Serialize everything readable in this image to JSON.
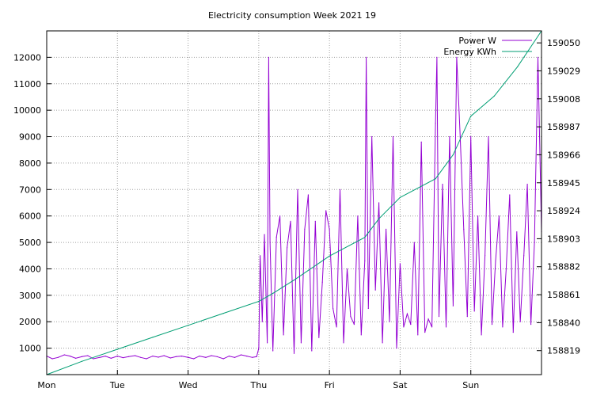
{
  "chart_data": {
    "type": "line",
    "title": "Electricity consumption Week 2021 19",
    "x_categories": [
      "Mon",
      "Tue",
      "Wed",
      "Thu",
      "Fri",
      "Sat",
      "Sun"
    ],
    "xlim": [
      0,
      7
    ],
    "y_left": {
      "lim": [
        0,
        13000
      ],
      "ticks": [
        1000,
        2000,
        3000,
        4000,
        5000,
        6000,
        7000,
        8000,
        9000,
        10000,
        11000,
        12000
      ]
    },
    "y_right": {
      "lim": [
        158801,
        159059
      ],
      "ticks": [
        158819,
        158840,
        158861,
        158882,
        158903,
        158924,
        158945,
        158966,
        158987,
        159008,
        159029,
        159050
      ]
    },
    "grid": true,
    "legend_position": "top-right",
    "series": [
      {
        "name": "Power W",
        "axis": "left",
        "color": "#9400d3",
        "x": [
          0.0,
          0.08,
          0.16,
          0.25,
          0.33,
          0.41,
          0.5,
          0.58,
          0.66,
          0.75,
          0.83,
          0.91,
          1.0,
          1.08,
          1.16,
          1.25,
          1.33,
          1.41,
          1.5,
          1.58,
          1.66,
          1.75,
          1.83,
          1.91,
          2.0,
          2.08,
          2.16,
          2.25,
          2.33,
          2.41,
          2.5,
          2.58,
          2.66,
          2.75,
          2.83,
          2.91,
          2.97,
          3.0,
          3.02,
          3.05,
          3.08,
          3.12,
          3.14,
          3.16,
          3.2,
          3.25,
          3.3,
          3.35,
          3.4,
          3.45,
          3.5,
          3.55,
          3.6,
          3.65,
          3.7,
          3.75,
          3.8,
          3.85,
          3.9,
          3.95,
          4.0,
          4.05,
          4.1,
          4.15,
          4.2,
          4.25,
          4.3,
          4.35,
          4.4,
          4.45,
          4.5,
          4.52,
          4.55,
          4.6,
          4.65,
          4.7,
          4.75,
          4.8,
          4.85,
          4.9,
          4.95,
          5.0,
          5.05,
          5.1,
          5.15,
          5.2,
          5.25,
          5.3,
          5.35,
          5.4,
          5.45,
          5.5,
          5.52,
          5.55,
          5.6,
          5.65,
          5.7,
          5.75,
          5.8,
          5.85,
          5.9,
          5.95,
          6.0,
          6.05,
          6.1,
          6.15,
          6.2,
          6.25,
          6.3,
          6.35,
          6.4,
          6.45,
          6.5,
          6.55,
          6.6,
          6.65,
          6.7,
          6.75,
          6.8,
          6.85,
          6.9,
          6.95,
          7.0
        ],
        "y": [
          700,
          600,
          650,
          750,
          700,
          620,
          680,
          720,
          600,
          650,
          700,
          620,
          700,
          640,
          680,
          720,
          650,
          600,
          700,
          660,
          720,
          630,
          680,
          700,
          650,
          600,
          700,
          650,
          720,
          680,
          600,
          700,
          650,
          750,
          700,
          650,
          680,
          1000,
          4500,
          2000,
          5300,
          1200,
          12000,
          5000,
          900,
          5200,
          6000,
          1500,
          4800,
          5800,
          800,
          7000,
          1200,
          5500,
          6800,
          900,
          5800,
          1400,
          3500,
          6200,
          5500,
          2500,
          1800,
          7000,
          1200,
          4000,
          2200,
          1900,
          6000,
          1500,
          4300,
          12000,
          2500,
          9000,
          3200,
          6500,
          1200,
          5500,
          2000,
          9000,
          1000,
          4200,
          1800,
          2300,
          1900,
          5000,
          1500,
          8800,
          1600,
          2100,
          1800,
          9500,
          12000,
          2200,
          7200,
          1800,
          9000,
          2600,
          12000,
          9000,
          5500,
          2200,
          9000,
          2400,
          6000,
          1500,
          4500,
          9000,
          1900,
          4300,
          6000,
          1800,
          4000,
          6800,
          1600,
          5400,
          2000,
          4500,
          7200,
          1900,
          5000,
          12000,
          5400
        ]
      },
      {
        "name": "Energy KWh",
        "axis": "right",
        "color": "#009e73",
        "x": [
          0,
          0.5,
          1,
          1.5,
          2,
          2.5,
          3,
          3.2,
          3.5,
          4,
          4.5,
          4.7,
          5,
          5.5,
          5.75,
          6,
          6.33,
          6.66,
          7
        ],
        "y": [
          158801,
          158811,
          158820,
          158829,
          158838,
          158847,
          158856,
          158862,
          158872,
          158890,
          158904,
          158918,
          158934,
          158948,
          158966,
          158995,
          159010,
          159032,
          159059
        ]
      }
    ]
  }
}
